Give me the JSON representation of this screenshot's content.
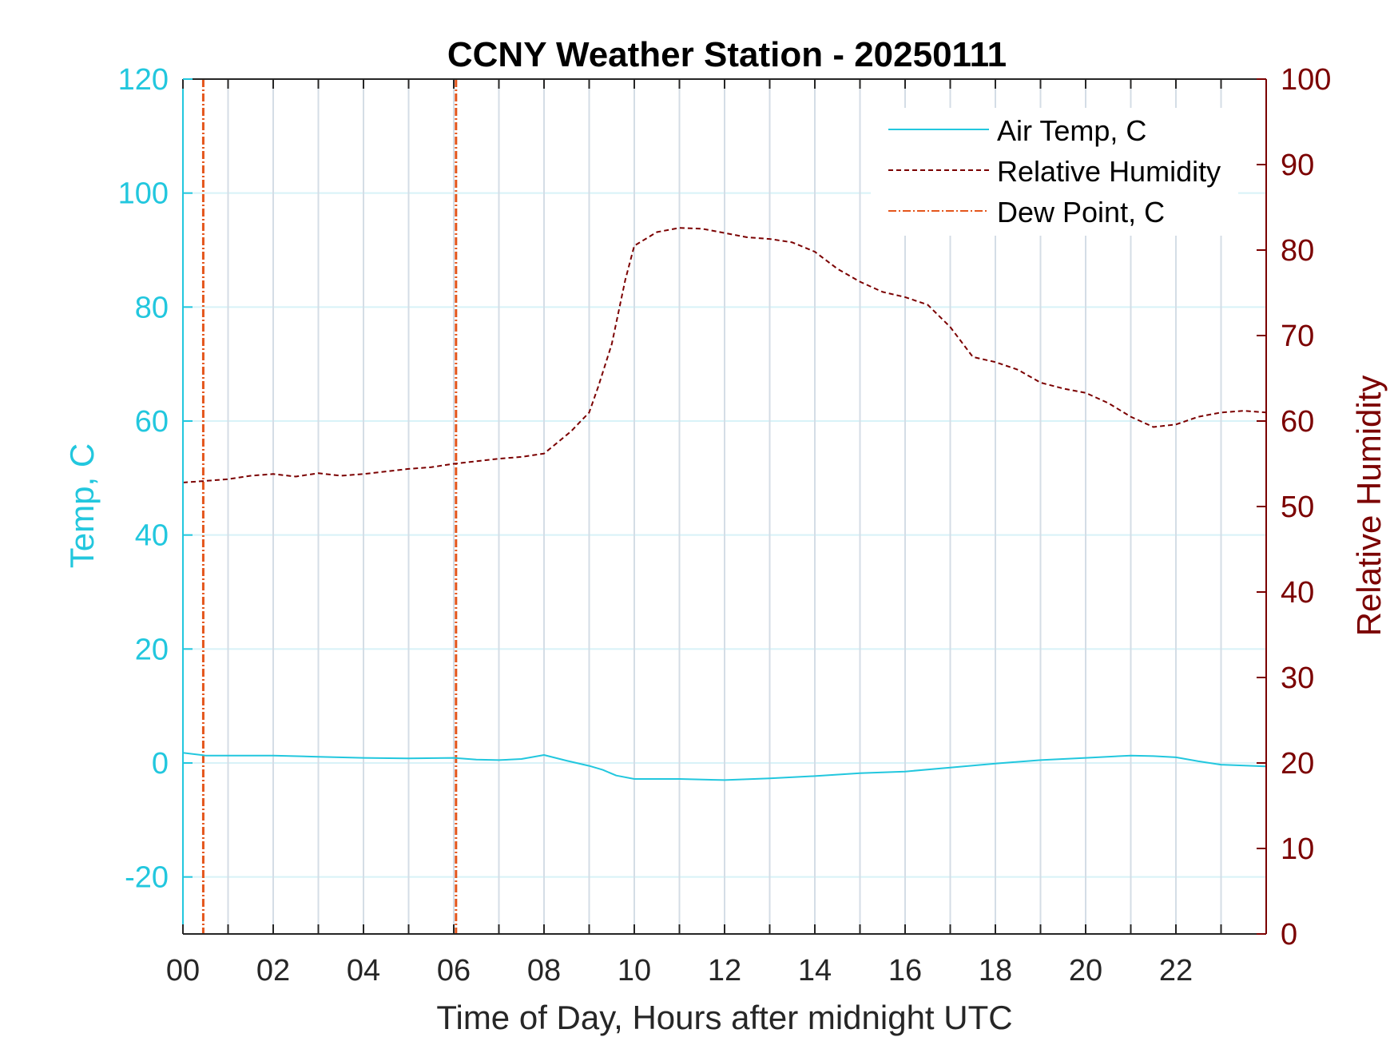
{
  "chart_data": {
    "type": "line",
    "title": "CCNY Weather Station - 20250111",
    "xlabel": "Time of Day, Hours after midnight UTC",
    "ylabel_left": "Temp, C",
    "ylabel_right": "Relative Humidity",
    "xlim": [
      0,
      24
    ],
    "ylim_left": [
      -30,
      120
    ],
    "ylim_right": [
      0,
      100
    ],
    "x_ticks": [
      "00",
      "02",
      "04",
      "06",
      "08",
      "10",
      "12",
      "14",
      "16",
      "18",
      "20",
      "22"
    ],
    "x_tick_values": [
      0,
      2,
      4,
      6,
      8,
      10,
      12,
      14,
      16,
      18,
      20,
      22
    ],
    "y_ticks_left": [
      -20,
      0,
      20,
      40,
      60,
      80,
      100,
      120
    ],
    "y_ticks_right": [
      0,
      10,
      20,
      30,
      40,
      50,
      60,
      70,
      80,
      90,
      100
    ],
    "grid": true,
    "legend_position": "top-right",
    "colors": {
      "air_temp": "#22c7de",
      "humidity": "#7b0000",
      "dew_point": "#e4561c",
      "grid_vertical": "#d4dde6",
      "grid_horizontal": "#d8f2f8"
    },
    "series": [
      {
        "name": "Air Temp, C",
        "axis": "left",
        "style": "solid",
        "x": [
          0,
          0.5,
          1,
          2,
          3,
          4,
          5,
          6,
          6.5,
          7,
          7.5,
          8,
          8.5,
          9,
          9.3,
          9.6,
          10,
          11,
          12,
          13,
          14,
          15,
          16,
          17,
          18,
          19,
          20,
          21,
          21.5,
          22,
          22.5,
          23,
          24
        ],
        "values": [
          1.8,
          1.3,
          1.3,
          1.3,
          1.1,
          0.9,
          0.8,
          0.9,
          0.6,
          0.5,
          0.7,
          1.4,
          0.4,
          -0.5,
          -1.2,
          -2.2,
          -2.8,
          -2.8,
          -3.0,
          -2.7,
          -2.3,
          -1.8,
          -1.5,
          -0.8,
          -0.1,
          0.5,
          0.9,
          1.3,
          1.2,
          1.0,
          0.3,
          -0.3,
          -0.6
        ]
      },
      {
        "name": "Relative Humidity",
        "axis": "right",
        "style": "dashed",
        "x": [
          0,
          0.5,
          1,
          1.5,
          2,
          2.5,
          3,
          3.5,
          4,
          4.5,
          5,
          5.5,
          6,
          6.5,
          7,
          7.5,
          8,
          8.3,
          8.6,
          9,
          9.2,
          9.5,
          9.8,
          10,
          10.5,
          11,
          11.5,
          12,
          12.5,
          13,
          13.5,
          14,
          14.5,
          15,
          15.5,
          16,
          16.5,
          17,
          17.5,
          18,
          18.5,
          19,
          19.5,
          20,
          20.5,
          21,
          21.5,
          22,
          22.5,
          23,
          23.5,
          24
        ],
        "values": [
          52.8,
          53.0,
          53.2,
          53.6,
          53.8,
          53.5,
          53.9,
          53.6,
          53.8,
          54.1,
          54.4,
          54.6,
          55.0,
          55.3,
          55.6,
          55.8,
          56.2,
          57.5,
          58.8,
          61.0,
          64.0,
          69.0,
          76.5,
          80.5,
          82.1,
          82.6,
          82.5,
          82.0,
          81.5,
          81.3,
          80.9,
          79.8,
          77.8,
          76.3,
          75.1,
          74.5,
          73.6,
          71.0,
          67.5,
          66.9,
          66.0,
          64.5,
          63.8,
          63.3,
          62.1,
          60.5,
          59.3,
          59.6,
          60.5,
          61.0,
          61.2,
          61.0
        ]
      },
      {
        "name": "Dew Point, C",
        "axis": "left",
        "style": "dash-dot",
        "x": [],
        "values": []
      }
    ],
    "vertical_markers": [
      0.45,
      6.05
    ]
  }
}
